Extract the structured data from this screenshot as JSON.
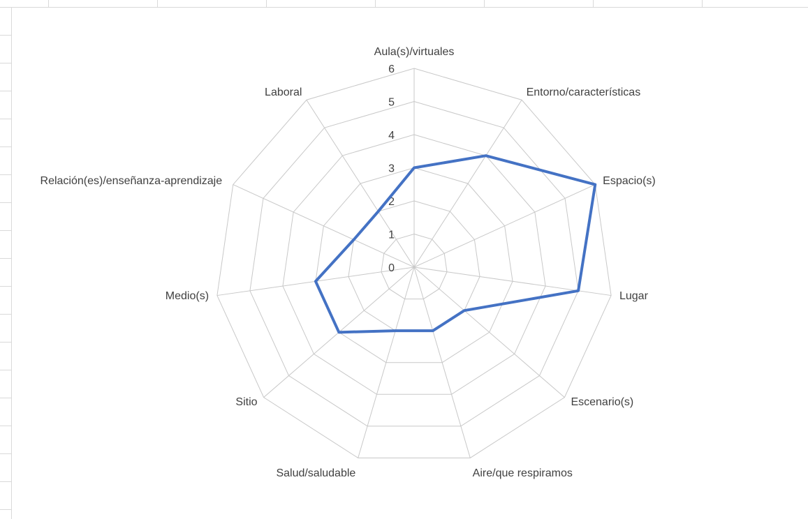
{
  "chart_data": {
    "type": "radar",
    "categories": [
      "Aula(s)/virtuales",
      "Entorno/características",
      "Espacio(s)",
      "Lugar",
      "Escenario(s)",
      "Aire/que respiramos",
      "Salud/saludable",
      "Sitio",
      "Medio(s)",
      "Relación(es)/enseñanza-aprendizaje",
      "Laboral"
    ],
    "values": [
      3,
      4,
      6,
      5,
      2,
      2,
      2,
      3,
      3,
      2,
      2
    ],
    "color": "#4472c4",
    "ylim": [
      0,
      6
    ],
    "yticks": [
      0,
      1,
      2,
      3,
      4,
      5,
      6
    ],
    "grid": true
  }
}
